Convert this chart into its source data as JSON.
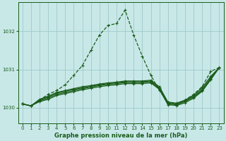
{
  "title": "Graphe pression niveau de la mer (hPa)",
  "bg_color": "#c8e8e8",
  "grid_color": "#a0c8c8",
  "line_color": "#1a5c1a",
  "xlim": [
    -0.5,
    23.5
  ],
  "ylim": [
    1029.6,
    1032.75
  ],
  "yticks": [
    1030,
    1031,
    1032
  ],
  "xticks": [
    0,
    1,
    2,
    3,
    4,
    5,
    6,
    7,
    8,
    9,
    10,
    11,
    12,
    13,
    14,
    15,
    16,
    17,
    18,
    19,
    20,
    21,
    22,
    23
  ],
  "series1_dashed": {
    "x": [
      0,
      1,
      2,
      3,
      4,
      5,
      6,
      7,
      8,
      9,
      10,
      11,
      12,
      13,
      14,
      15,
      16,
      17,
      18,
      19,
      20,
      21,
      22,
      23
    ],
    "y": [
      1030.1,
      1030.05,
      1030.2,
      1030.35,
      1030.45,
      1030.6,
      1030.85,
      1031.1,
      1031.5,
      1031.9,
      1032.15,
      1032.2,
      1032.55,
      1031.9,
      1031.35,
      1030.85,
      1030.45,
      1030.15,
      1030.1,
      1030.2,
      1030.35,
      1030.55,
      1030.95,
      1031.05
    ]
  },
  "series2": {
    "x": [
      0,
      1,
      2,
      3,
      4,
      5,
      6,
      7,
      8,
      9,
      10,
      11,
      12,
      13,
      14,
      15,
      16,
      17,
      18,
      19,
      20,
      21,
      22,
      23
    ],
    "y": [
      1030.1,
      1030.05,
      1030.2,
      1030.28,
      1030.38,
      1030.43,
      1030.48,
      1030.52,
      1030.56,
      1030.6,
      1030.63,
      1030.65,
      1030.68,
      1030.68,
      1030.68,
      1030.7,
      1030.52,
      1030.12,
      1030.1,
      1030.18,
      1030.3,
      1030.48,
      1030.78,
      1031.05
    ]
  },
  "series3": {
    "x": [
      0,
      1,
      2,
      3,
      4,
      5,
      6,
      7,
      8,
      9,
      10,
      11,
      12,
      13,
      14,
      15,
      16,
      17,
      18,
      19,
      20,
      21,
      22,
      23
    ],
    "y": [
      1030.1,
      1030.05,
      1030.22,
      1030.3,
      1030.4,
      1030.45,
      1030.5,
      1030.55,
      1030.58,
      1030.62,
      1030.65,
      1030.67,
      1030.7,
      1030.7,
      1030.7,
      1030.72,
      1030.55,
      1030.15,
      1030.12,
      1030.2,
      1030.33,
      1030.52,
      1030.82,
      1031.05
    ]
  },
  "series4": {
    "x": [
      0,
      1,
      2,
      3,
      4,
      5,
      6,
      7,
      8,
      9,
      10,
      11,
      12,
      13,
      14,
      15,
      16,
      17,
      18,
      19,
      20,
      21,
      22,
      23
    ],
    "y": [
      1030.1,
      1030.05,
      1030.18,
      1030.25,
      1030.35,
      1030.4,
      1030.45,
      1030.5,
      1030.54,
      1030.58,
      1030.61,
      1030.63,
      1030.66,
      1030.66,
      1030.66,
      1030.68,
      1030.5,
      1030.1,
      1030.08,
      1030.16,
      1030.28,
      1030.45,
      1030.75,
      1031.05
    ]
  },
  "series5": {
    "x": [
      0,
      1,
      2,
      3,
      4,
      5,
      6,
      7,
      8,
      9,
      10,
      11,
      12,
      13,
      14,
      15,
      16,
      17,
      18,
      19,
      20,
      21,
      22,
      23
    ],
    "y": [
      1030.1,
      1030.05,
      1030.16,
      1030.22,
      1030.32,
      1030.37,
      1030.42,
      1030.47,
      1030.51,
      1030.55,
      1030.58,
      1030.6,
      1030.63,
      1030.63,
      1030.63,
      1030.65,
      1030.48,
      1030.08,
      1030.06,
      1030.13,
      1030.25,
      1030.43,
      1030.73,
      1031.05
    ]
  }
}
